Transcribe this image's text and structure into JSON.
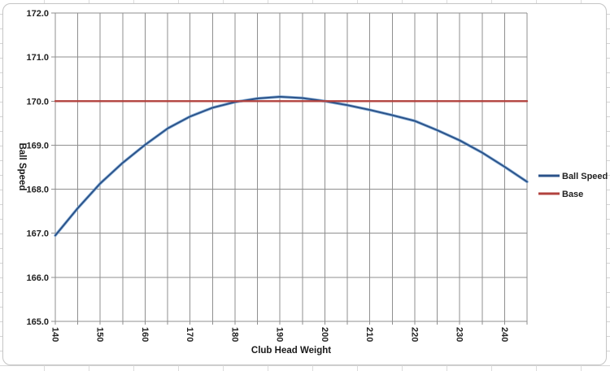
{
  "chart_data": {
    "type": "line",
    "xlabel": "Club Head Weight",
    "ylabel": "Ball Speed",
    "xlim": [
      140,
      245
    ],
    "ylim": [
      165.0,
      172.0
    ],
    "x_minor_grid_step": 5,
    "x_tick_step": 10,
    "grid": true,
    "legend_position": "right",
    "x_tick_labels": [
      "140",
      "150",
      "160",
      "170",
      "180",
      "190",
      "200",
      "210",
      "220",
      "230",
      "240"
    ],
    "y_tick_labels": [
      "165.0",
      "166.0",
      "167.0",
      "168.0",
      "169.0",
      "170.0",
      "171.0",
      "172.0"
    ],
    "x": [
      140,
      145,
      150,
      155,
      160,
      165,
      170,
      175,
      180,
      185,
      190,
      195,
      200,
      205,
      210,
      215,
      220,
      225,
      230,
      235,
      240,
      245
    ],
    "series": [
      {
        "name": "Ball Speed",
        "color": "#2a5289",
        "halo_color": "#7fa8d4",
        "values": [
          166.95,
          167.57,
          168.13,
          168.6,
          169.01,
          169.38,
          169.65,
          169.85,
          169.98,
          170.06,
          170.1,
          170.07,
          170.0,
          169.91,
          169.8,
          169.68,
          169.55,
          169.34,
          169.11,
          168.83,
          168.51,
          168.17
        ]
      },
      {
        "name": "Base",
        "color": "#b2423e",
        "values": [
          170,
          170,
          170,
          170,
          170,
          170,
          170,
          170,
          170,
          170,
          170,
          170,
          170,
          170,
          170,
          170,
          170,
          170,
          170,
          170,
          170,
          170
        ]
      }
    ]
  },
  "colors": {
    "grid": "#8f8f8f",
    "tick_label": "#222222",
    "frame_border": "#c6c6c6"
  }
}
